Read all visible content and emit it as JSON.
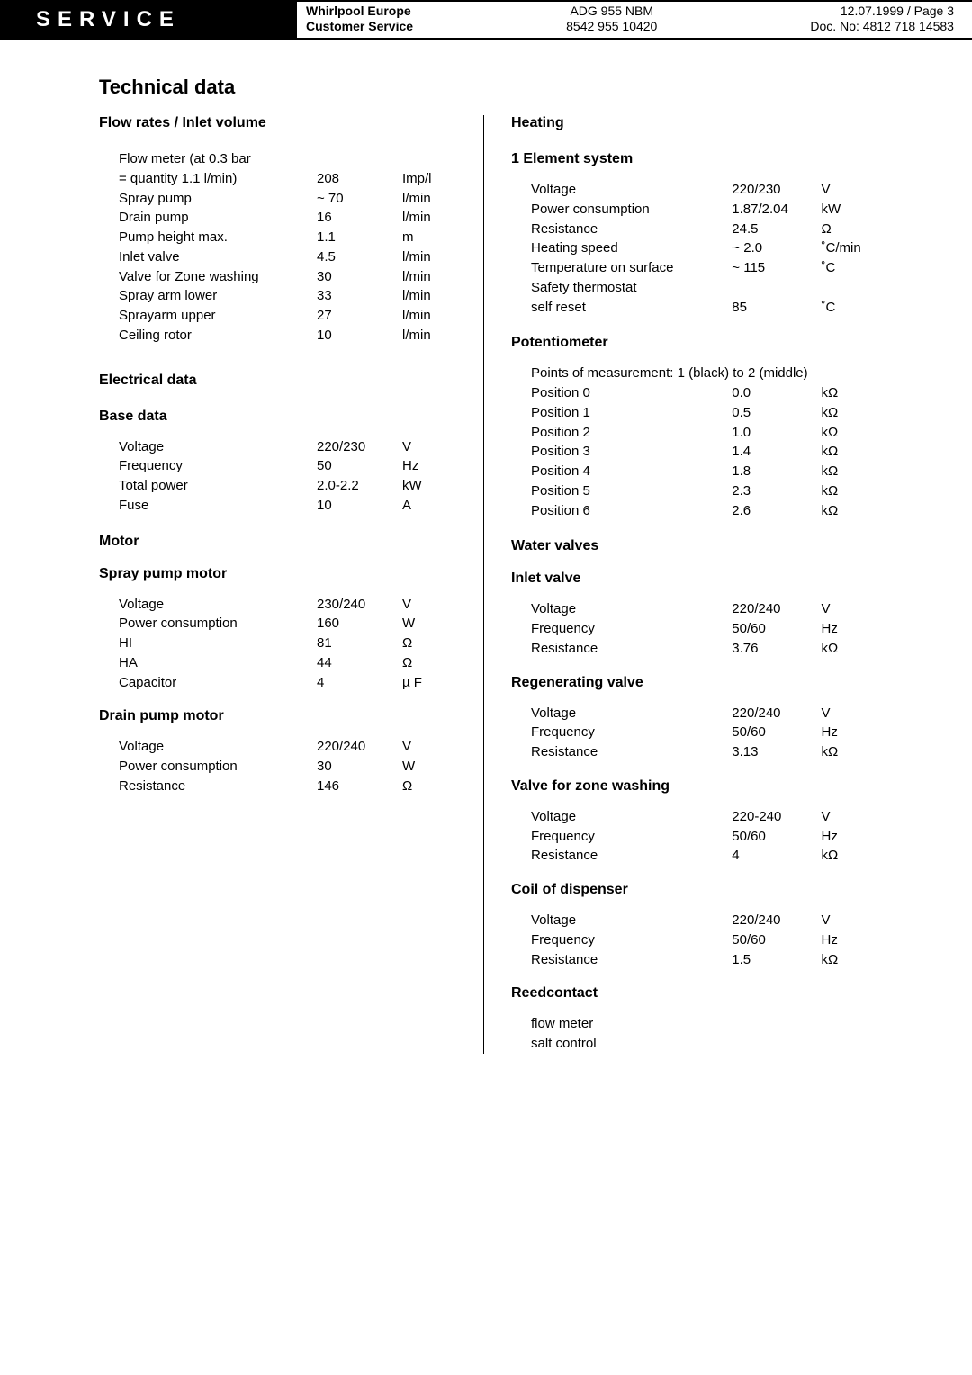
{
  "header": {
    "service": "SERVICE",
    "brand_l1": "Whirlpool Europe",
    "brand_l2": "Customer Service",
    "model_l1": "ADG 955 NBM",
    "model_l2": "8542 955 10420",
    "meta_l1": "12.07.1999 / Page 3",
    "meta_l2": "Doc. No: 4812 718 14583"
  },
  "title": "Technical data",
  "left": {
    "flow": {
      "title": "Flow rates / Inlet volume",
      "rows": [
        {
          "a": "Flow meter (at 0.3 bar",
          "b": "",
          "c": ""
        },
        {
          "a": "= quantity 1.1 l/min)",
          "b": "208",
          "c": "Imp/l"
        },
        {
          "a": "Spray pump",
          "b": "~ 70",
          "c": "l/min"
        },
        {
          "a": "Drain pump",
          "b": "16",
          "c": "l/min"
        },
        {
          "a": "Pump height max.",
          "b": "1.1",
          "c": "m"
        },
        {
          "a": "Inlet valve",
          "b": "4.5",
          "c": "l/min"
        },
        {
          "a": "Valve for Zone washing",
          "b": "30",
          "c": "l/min"
        },
        {
          "a": "Spray arm lower",
          "b": "33",
          "c": "l/min"
        },
        {
          "a": "Sprayarm upper",
          "b": "27",
          "c": "l/min"
        },
        {
          "a": "Ceiling rotor",
          "b": "10",
          "c": "l/min"
        }
      ]
    },
    "electrical": {
      "title": "Electrical data"
    },
    "base": {
      "title": "Base data",
      "rows": [
        {
          "a": "Voltage",
          "b": "220/230",
          "c": "V"
        },
        {
          "a": "Frequency",
          "b": "50",
          "c": "Hz"
        },
        {
          "a": "Total power",
          "b": "2.0-2.2",
          "c": "kW"
        },
        {
          "a": "Fuse",
          "b": "10",
          "c": "A"
        }
      ]
    },
    "motor": {
      "title": "Motor"
    },
    "spray": {
      "title": "Spray pump motor",
      "rows": [
        {
          "a": "Voltage",
          "b": "230/240",
          "c": "V"
        },
        {
          "a": "Power consumption",
          "b": "160",
          "c": "W"
        },
        {
          "a": "HI",
          "b": "81",
          "c": "Ω"
        },
        {
          "a": "HA",
          "b": "44",
          "c": "Ω"
        },
        {
          "a": "Capacitor",
          "b": "4",
          "c": "µ F"
        }
      ]
    },
    "drain": {
      "title": "Drain pump motor",
      "rows": [
        {
          "a": "Voltage",
          "b": "220/240",
          "c": "V"
        },
        {
          "a": "Power consumption",
          "b": "30",
          "c": "W"
        },
        {
          "a": "Resistance",
          "b": "146",
          "c": "Ω"
        }
      ]
    }
  },
  "right": {
    "heating": {
      "title": "Heating"
    },
    "element": {
      "title": "1 Element system",
      "rows": [
        {
          "a": "Voltage",
          "b": "220/230",
          "c": "V"
        },
        {
          "a": "Power consumption",
          "b": "1.87/2.04",
          "c": "kW"
        },
        {
          "a": "Resistance",
          "b": "24.5",
          "c": "Ω"
        },
        {
          "a": "Heating speed",
          "b": "~ 2.0",
          "c": "˚C/min"
        },
        {
          "a": "Temperature on surface",
          "b": "~ 115",
          "c": "˚C"
        },
        {
          "a": "Safety thermostat",
          "b": "",
          "c": ""
        },
        {
          "a": "self reset",
          "b": "85",
          "c": "˚C"
        }
      ]
    },
    "pot": {
      "title": "Potentiometer",
      "note": "Points of measurement: 1 (black) to 2 (middle)",
      "rows": [
        {
          "a": "Position 0",
          "b": "0.0",
          "c": "kΩ"
        },
        {
          "a": "Position 1",
          "b": "0.5",
          "c": "kΩ"
        },
        {
          "a": "Position 2",
          "b": "1.0",
          "c": "kΩ"
        },
        {
          "a": "Position 3",
          "b": "1.4",
          "c": "kΩ"
        },
        {
          "a": "Position 4",
          "b": "1.8",
          "c": "kΩ"
        },
        {
          "a": "Position 5",
          "b": "2.3",
          "c": "kΩ"
        },
        {
          "a": "Position 6",
          "b": "2.6",
          "c": "kΩ"
        }
      ]
    },
    "wv": {
      "title": "Water valves"
    },
    "inlet": {
      "title": "Inlet valve",
      "rows": [
        {
          "a": "Voltage",
          "b": "220/240",
          "c": "V"
        },
        {
          "a": "Frequency",
          "b": "50/60",
          "c": "Hz"
        },
        {
          "a": "Resistance",
          "b": "3.76",
          "c": "kΩ"
        }
      ]
    },
    "regen": {
      "title": "Regenerating valve",
      "rows": [
        {
          "a": "Voltage",
          "b": "220/240",
          "c": "V"
        },
        {
          "a": "Frequency",
          "b": "50/60",
          "c": "Hz"
        },
        {
          "a": "Resistance",
          "b": "3.13",
          "c": "kΩ"
        }
      ]
    },
    "zone": {
      "title": "Valve for zone washing",
      "rows": [
        {
          "a": "Voltage",
          "b": "220-240",
          "c": "V"
        },
        {
          "a": "Frequency",
          "b": "50/60",
          "c": "Hz"
        },
        {
          "a": "Resistance",
          "b": "4",
          "c": "kΩ"
        }
      ]
    },
    "coil": {
      "title": "Coil of dispenser",
      "rows": [
        {
          "a": "Voltage",
          "b": "220/240",
          "c": "V"
        },
        {
          "a": "Frequency",
          "b": "50/60",
          "c": "Hz"
        },
        {
          "a": "Resistance",
          "b": "1.5",
          "c": "kΩ"
        }
      ]
    },
    "reed": {
      "title": "Reedcontact",
      "items": [
        "flow meter",
        "salt control"
      ]
    }
  }
}
